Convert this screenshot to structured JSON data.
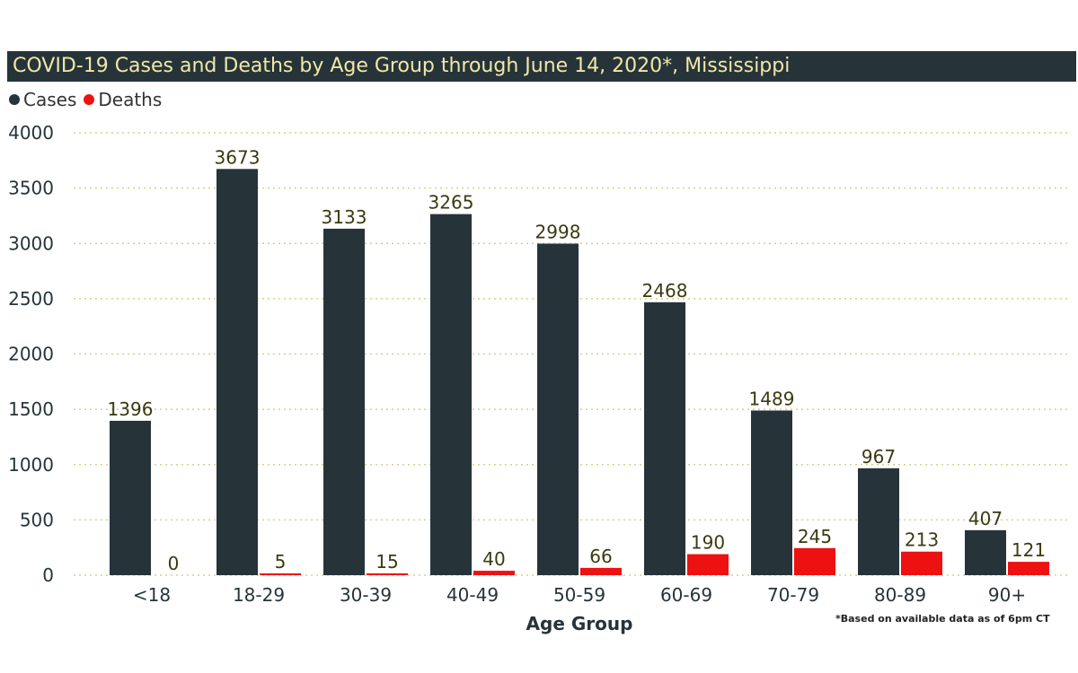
{
  "chart_data": {
    "type": "bar",
    "title": "COVID-19 Cases and Deaths by Age Group through June 14, 2020*, Mississippi",
    "xlabel": "Age Group",
    "ylabel": "",
    "ylim": [
      0,
      4000
    ],
    "yticks": [
      "0",
      "500",
      "1000",
      "1500",
      "2000",
      "2500",
      "3000",
      "3500",
      "4000"
    ],
    "categories": [
      "<18",
      "18-29",
      "30-39",
      "40-49",
      "50-59",
      "60-69",
      "70-79",
      "80-89",
      "90+"
    ],
    "series": [
      {
        "name": "Cases",
        "color": "#26343a",
        "values": [
          1396,
          3673,
          3133,
          3265,
          2998,
          2468,
          1489,
          967,
          407
        ]
      },
      {
        "name": "Deaths",
        "color": "#ee1111",
        "values": [
          0,
          5,
          15,
          40,
          66,
          190,
          245,
          213,
          121
        ]
      }
    ],
    "grid": true,
    "legend_position": "top-left",
    "footnote": "*Based on available data as of 6pm CT"
  }
}
